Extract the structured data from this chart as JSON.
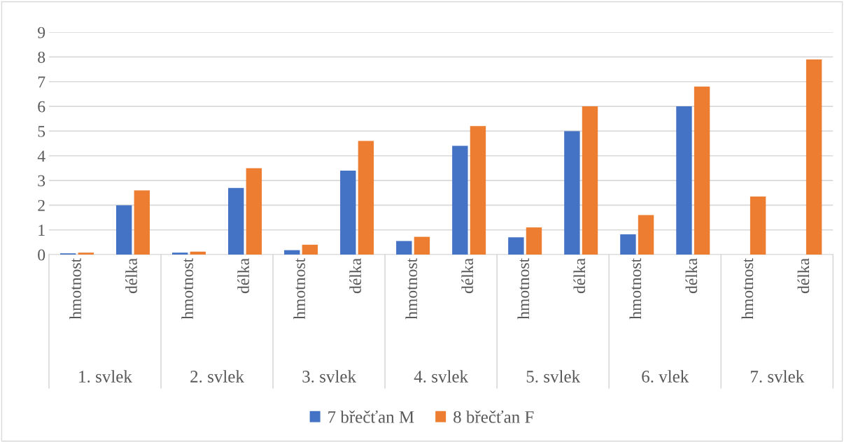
{
  "chart_data": {
    "type": "bar",
    "categories": [
      "hmotnost",
      "délka",
      "hmotnost",
      "délka",
      "hmotnost",
      "délka",
      "hmotnost",
      "délka",
      "hmotnost",
      "délka",
      "hmotnost",
      "délka",
      "hmotnost",
      "délka"
    ],
    "annotations": [
      "1. svlek",
      "2. svlek",
      "3. svlek",
      "4. svlek",
      "5. svlek",
      "6. vlek",
      "7. svlek"
    ],
    "series": [
      {
        "name": "7 břečťan M",
        "color": "#4472c4",
        "values": [
          0.05,
          2.0,
          0.08,
          2.7,
          0.18,
          3.4,
          0.55,
          4.4,
          0.7,
          5.0,
          0.82,
          6.0,
          null,
          null
        ]
      },
      {
        "name": "8 břečťan F",
        "color": "#ed7d31",
        "values": [
          0.08,
          2.6,
          0.12,
          3.5,
          0.4,
          4.6,
          0.72,
          5.2,
          1.1,
          6.0,
          1.6,
          6.8,
          2.35,
          7.9
        ]
      }
    ],
    "ylim": [
      0,
      9
    ],
    "yticks": [
      0,
      1,
      2,
      3,
      4,
      5,
      6,
      7,
      8,
      9
    ],
    "grid": "y",
    "legend": "bottom"
  }
}
